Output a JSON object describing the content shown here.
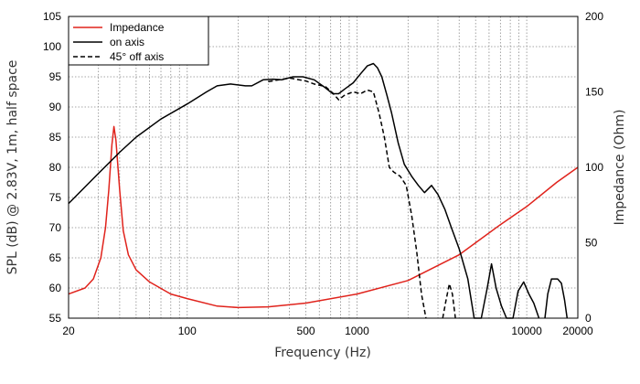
{
  "chart_data": {
    "type": "line",
    "xlabel": "Frequency (Hz)",
    "ylabel_left": "SPL (dB) @ 2.83V, 1m, half space",
    "ylabel_right": "Impedance (Ohm)",
    "xscale": "log",
    "xlim": [
      20,
      20000
    ],
    "ylim_left": [
      55,
      105
    ],
    "ylim_right": [
      0,
      200
    ],
    "x_ticks": [
      {
        "value": 20,
        "label": "20"
      },
      {
        "value": 100,
        "label": "100"
      },
      {
        "value": 500,
        "label": "500"
      },
      {
        "value": 1000,
        "label": "1000"
      },
      {
        "value": 10000,
        "label": "10000"
      },
      {
        "value": 20000,
        "label": "20000"
      }
    ],
    "y_ticks_left": [
      "55",
      "60",
      "65",
      "70",
      "75",
      "80",
      "85",
      "90",
      "95",
      "100",
      "105"
    ],
    "y_ticks_right": [
      "0",
      "50",
      "100",
      "150",
      "200"
    ],
    "grid": "dotted",
    "legend_position": "top-left",
    "colors": {
      "impedance": "#e0231c",
      "on_axis": "#000000",
      "off_axis": "#000000"
    },
    "series": [
      {
        "name": "Impedance",
        "axis": "right",
        "style": "solid",
        "points": [
          [
            20,
            16
          ],
          [
            25,
            20
          ],
          [
            28,
            26
          ],
          [
            31,
            40
          ],
          [
            33,
            60
          ],
          [
            34.5,
            85
          ],
          [
            36,
            115
          ],
          [
            37,
            127
          ],
          [
            38,
            118
          ],
          [
            40,
            85
          ],
          [
            42,
            58
          ],
          [
            45,
            42
          ],
          [
            50,
            32
          ],
          [
            60,
            24
          ],
          [
            80,
            16
          ],
          [
            100,
            13
          ],
          [
            150,
            8
          ],
          [
            200,
            7
          ],
          [
            300,
            7.5
          ],
          [
            500,
            10
          ],
          [
            1000,
            16
          ],
          [
            2000,
            25
          ],
          [
            4000,
            42
          ],
          [
            7000,
            62
          ],
          [
            10000,
            74
          ],
          [
            15000,
            90
          ],
          [
            20000,
            100
          ]
        ]
      },
      {
        "name": "on axis",
        "axis": "left",
        "style": "solid",
        "points": [
          [
            20,
            74
          ],
          [
            30,
            79
          ],
          [
            40,
            82.5
          ],
          [
            50,
            85
          ],
          [
            70,
            88
          ],
          [
            100,
            90.5
          ],
          [
            130,
            92.5
          ],
          [
            150,
            93.5
          ],
          [
            180,
            93.8
          ],
          [
            220,
            93.5
          ],
          [
            240,
            93.5
          ],
          [
            280,
            94.5
          ],
          [
            320,
            94.6
          ],
          [
            360,
            94.5
          ],
          [
            420,
            95
          ],
          [
            480,
            95
          ],
          [
            560,
            94.5
          ],
          [
            650,
            93.2
          ],
          [
            720,
            92.2
          ],
          [
            780,
            92.2
          ],
          [
            850,
            93
          ],
          [
            950,
            94
          ],
          [
            1050,
            95.5
          ],
          [
            1150,
            96.8
          ],
          [
            1250,
            97.2
          ],
          [
            1320,
            96.5
          ],
          [
            1400,
            95
          ],
          [
            1500,
            92
          ],
          [
            1600,
            89
          ],
          [
            1750,
            84
          ],
          [
            1900,
            80.5
          ],
          [
            2100,
            78.5
          ],
          [
            2300,
            77
          ],
          [
            2500,
            75.8
          ],
          [
            2750,
            77
          ],
          [
            3000,
            75.5
          ],
          [
            3300,
            73
          ],
          [
            3600,
            70
          ],
          [
            4000,
            66.5
          ],
          [
            4500,
            61.5
          ],
          [
            4900,
            55
          ],
          [
            5400,
            55
          ],
          [
            5850,
            60
          ],
          [
            6200,
            64
          ],
          [
            6600,
            60
          ],
          [
            7100,
            57
          ],
          [
            7600,
            55
          ],
          [
            8300,
            55
          ],
          [
            8900,
            59.5
          ],
          [
            9600,
            61
          ],
          [
            10300,
            59
          ],
          [
            11000,
            57.5
          ],
          [
            11800,
            55
          ]
        ]
      },
      {
        "name": "45° off axis",
        "axis": "left",
        "style": "dashed",
        "points": [
          [
            300,
            94.2
          ],
          [
            400,
            94.8
          ],
          [
            500,
            94.3
          ],
          [
            560,
            93.8
          ],
          [
            650,
            93.4
          ],
          [
            720,
            92.3
          ],
          [
            780,
            91.2
          ],
          [
            850,
            92
          ],
          [
            950,
            92.5
          ],
          [
            1050,
            92.2
          ],
          [
            1150,
            92.8
          ],
          [
            1250,
            92.5
          ],
          [
            1350,
            89
          ],
          [
            1450,
            85
          ],
          [
            1550,
            80
          ],
          [
            1650,
            79.2
          ],
          [
            1800,
            78.5
          ],
          [
            1950,
            77
          ],
          [
            2100,
            72
          ],
          [
            2250,
            66
          ],
          [
            2400,
            59
          ],
          [
            2550,
            55
          ]
        ]
      },
      {
        "name": "45° off axis",
        "axis": "left",
        "style": "dashed",
        "points": [
          [
            3200,
            55
          ],
          [
            3350,
            58
          ],
          [
            3500,
            60.7
          ],
          [
            3650,
            59
          ],
          [
            3800,
            55
          ]
        ]
      },
      {
        "name": "on axis",
        "axis": "left",
        "style": "solid",
        "points": [
          [
            12800,
            55
          ],
          [
            13300,
            59
          ],
          [
            14000,
            61.5
          ],
          [
            15200,
            61.5
          ],
          [
            16000,
            60.8
          ],
          [
            16700,
            58
          ],
          [
            17300,
            55
          ]
        ]
      }
    ],
    "legend": [
      {
        "label": "Impedance",
        "style": "solid",
        "color": "#e0231c"
      },
      {
        "label": "on axis",
        "style": "solid",
        "color": "#000000"
      },
      {
        "label": "45° off axis",
        "style": "dashed",
        "color": "#000000"
      }
    ]
  }
}
